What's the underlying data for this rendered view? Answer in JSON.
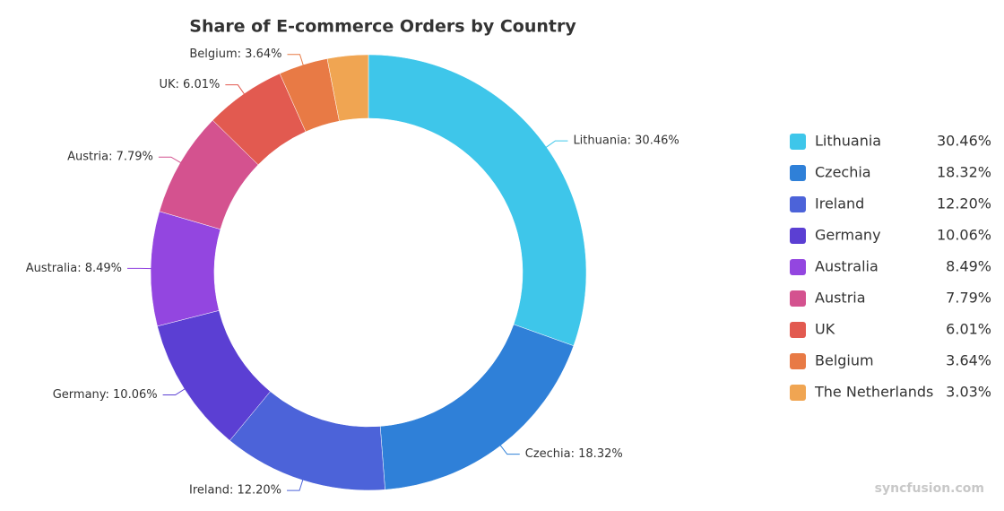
{
  "chart_data": {
    "type": "donut",
    "title": "Share of E-commerce Orders by Country",
    "categories": [
      "Lithuania",
      "Czechia",
      "Ireland",
      "Germany",
      "Australia",
      "Austria",
      "UK",
      "Belgium",
      "The Netherlands"
    ],
    "values": [
      30.46,
      18.32,
      12.2,
      10.06,
      8.49,
      7.79,
      6.01,
      3.64,
      3.03
    ],
    "value_labels": [
      "30.46%",
      "18.32%",
      "12.20%",
      "10.06%",
      "8.49%",
      "7.79%",
      "6.01%",
      "3.64%",
      "3.03%"
    ],
    "data_labels": [
      "Lithuania: 30.46%",
      "Czechia: 18.32%",
      "Ireland: 12.20%",
      "Germany: 10.06%",
      "Australia: 8.49%",
      "Austria: 7.79%",
      "UK: 6.01%",
      "Belgium: 3.64%",
      null
    ],
    "colors": [
      "#3ec6ea",
      "#2f80d8",
      "#4c63d9",
      "#5b3fd3",
      "#9346e0",
      "#d4528f",
      "#e25a50",
      "#e87a45",
      "#f0a552"
    ],
    "legend": "right",
    "watermark": "syncfusion.com"
  }
}
